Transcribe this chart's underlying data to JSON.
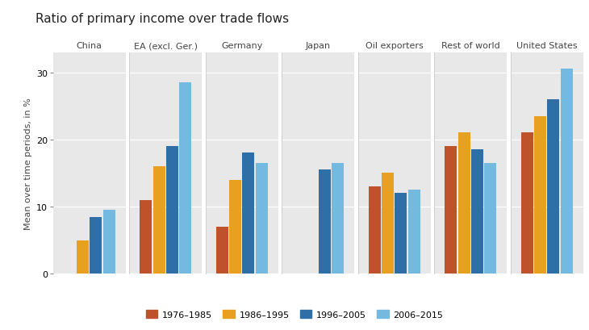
{
  "title": "Ratio of primary income over trade flows",
  "ylabel": "Mean over time periods, in %",
  "categories": [
    "China",
    "EA (excl. Ger.)",
    "Germany",
    "Japan",
    "Oil exporters",
    "Rest of world",
    "United States"
  ],
  "series_labels": [
    "1976–1985",
    "1986–1995",
    "1996–2005",
    "2006–2015"
  ],
  "colors": [
    "#c0522b",
    "#e8a020",
    "#2d6fa6",
    "#74b9e0"
  ],
  "values": {
    "China": [
      null,
      5.0,
      8.5,
      9.5
    ],
    "EA (excl. Ger.)": [
      11.0,
      16.0,
      19.0,
      28.5
    ],
    "Germany": [
      7.0,
      14.0,
      18.0,
      16.5
    ],
    "Japan": [
      null,
      null,
      15.5,
      16.5
    ],
    "Oil exporters": [
      13.0,
      15.0,
      12.0,
      12.5
    ],
    "Rest of world": [
      19.0,
      21.0,
      18.5,
      16.5
    ],
    "United States": [
      21.0,
      23.5,
      26.0,
      30.5
    ]
  },
  "ylim": [
    0,
    33
  ],
  "yticks": [
    0,
    10,
    20,
    30
  ],
  "fig_bg": "#ffffff",
  "panel_bg": "#e8e8e8",
  "grid_color": "#ffffff",
  "title_fontsize": 11,
  "ylabel_fontsize": 8,
  "tick_fontsize": 8,
  "cat_fontsize": 8,
  "legend_fontsize": 8,
  "bar_width": 0.15
}
